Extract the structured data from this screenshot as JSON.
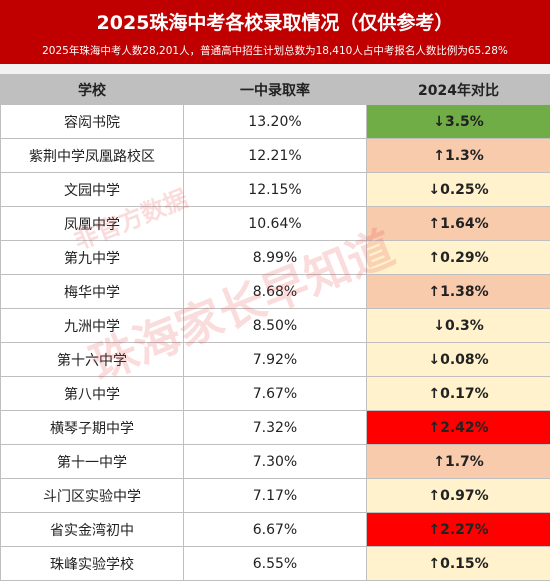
{
  "header": {
    "title": "2025珠海中考各校录取情况（仅供参考）",
    "subtitle": "2025年珠海中考人数28,201人，普通高中招生计划总数为18,410人占中考报名人数比例为65.28%"
  },
  "table": {
    "columns": [
      "学校",
      "一中录取率",
      "2024年对比"
    ],
    "rows": [
      [
        "容闳书院",
        "13.20%",
        "↓3.5%"
      ],
      [
        "紫荆中学凤凰路校区",
        "12.21%",
        "↑1.3%"
      ],
      [
        "文园中学",
        "12.15%",
        "↓0.25%"
      ],
      [
        "凤凰中学",
        "10.64%",
        "↑1.64%"
      ],
      [
        "第九中学",
        "8.99%",
        "↑0.29%"
      ],
      [
        "梅华中学",
        "8.68%",
        "↑1.38%"
      ],
      [
        "九洲中学",
        "8.50%",
        "↓0.3%"
      ],
      [
        "第十六中学",
        "7.92%",
        "↓0.08%"
      ],
      [
        "第八中学",
        "7.67%",
        "↑0.17%"
      ],
      [
        "横琴子期中学",
        "7.32%",
        "↑2.42%"
      ],
      [
        "第十一中学",
        "7.30%",
        "↑1.7%"
      ],
      [
        "斗门区实验中学",
        "7.17%",
        "↑0.97%"
      ],
      [
        "省实金湾初中",
        "6.67%",
        "↑2.27%"
      ],
      [
        "珠峰实验学校",
        "6.55%",
        "↑0.15%"
      ]
    ],
    "change_colors": [
      "#70ad47",
      "#f8cbad",
      "#fff2cc",
      "#f8cbad",
      "#fff2cc",
      "#f8cbad",
      "#fff2cc",
      "#fff2cc",
      "#fff2cc",
      "#ff0000",
      "#f8cbad",
      "#fff2cc",
      "#ff0000",
      "#fff2cc"
    ]
  },
  "watermarks": [
    "珠海家长早知道",
    "非官方数据"
  ]
}
